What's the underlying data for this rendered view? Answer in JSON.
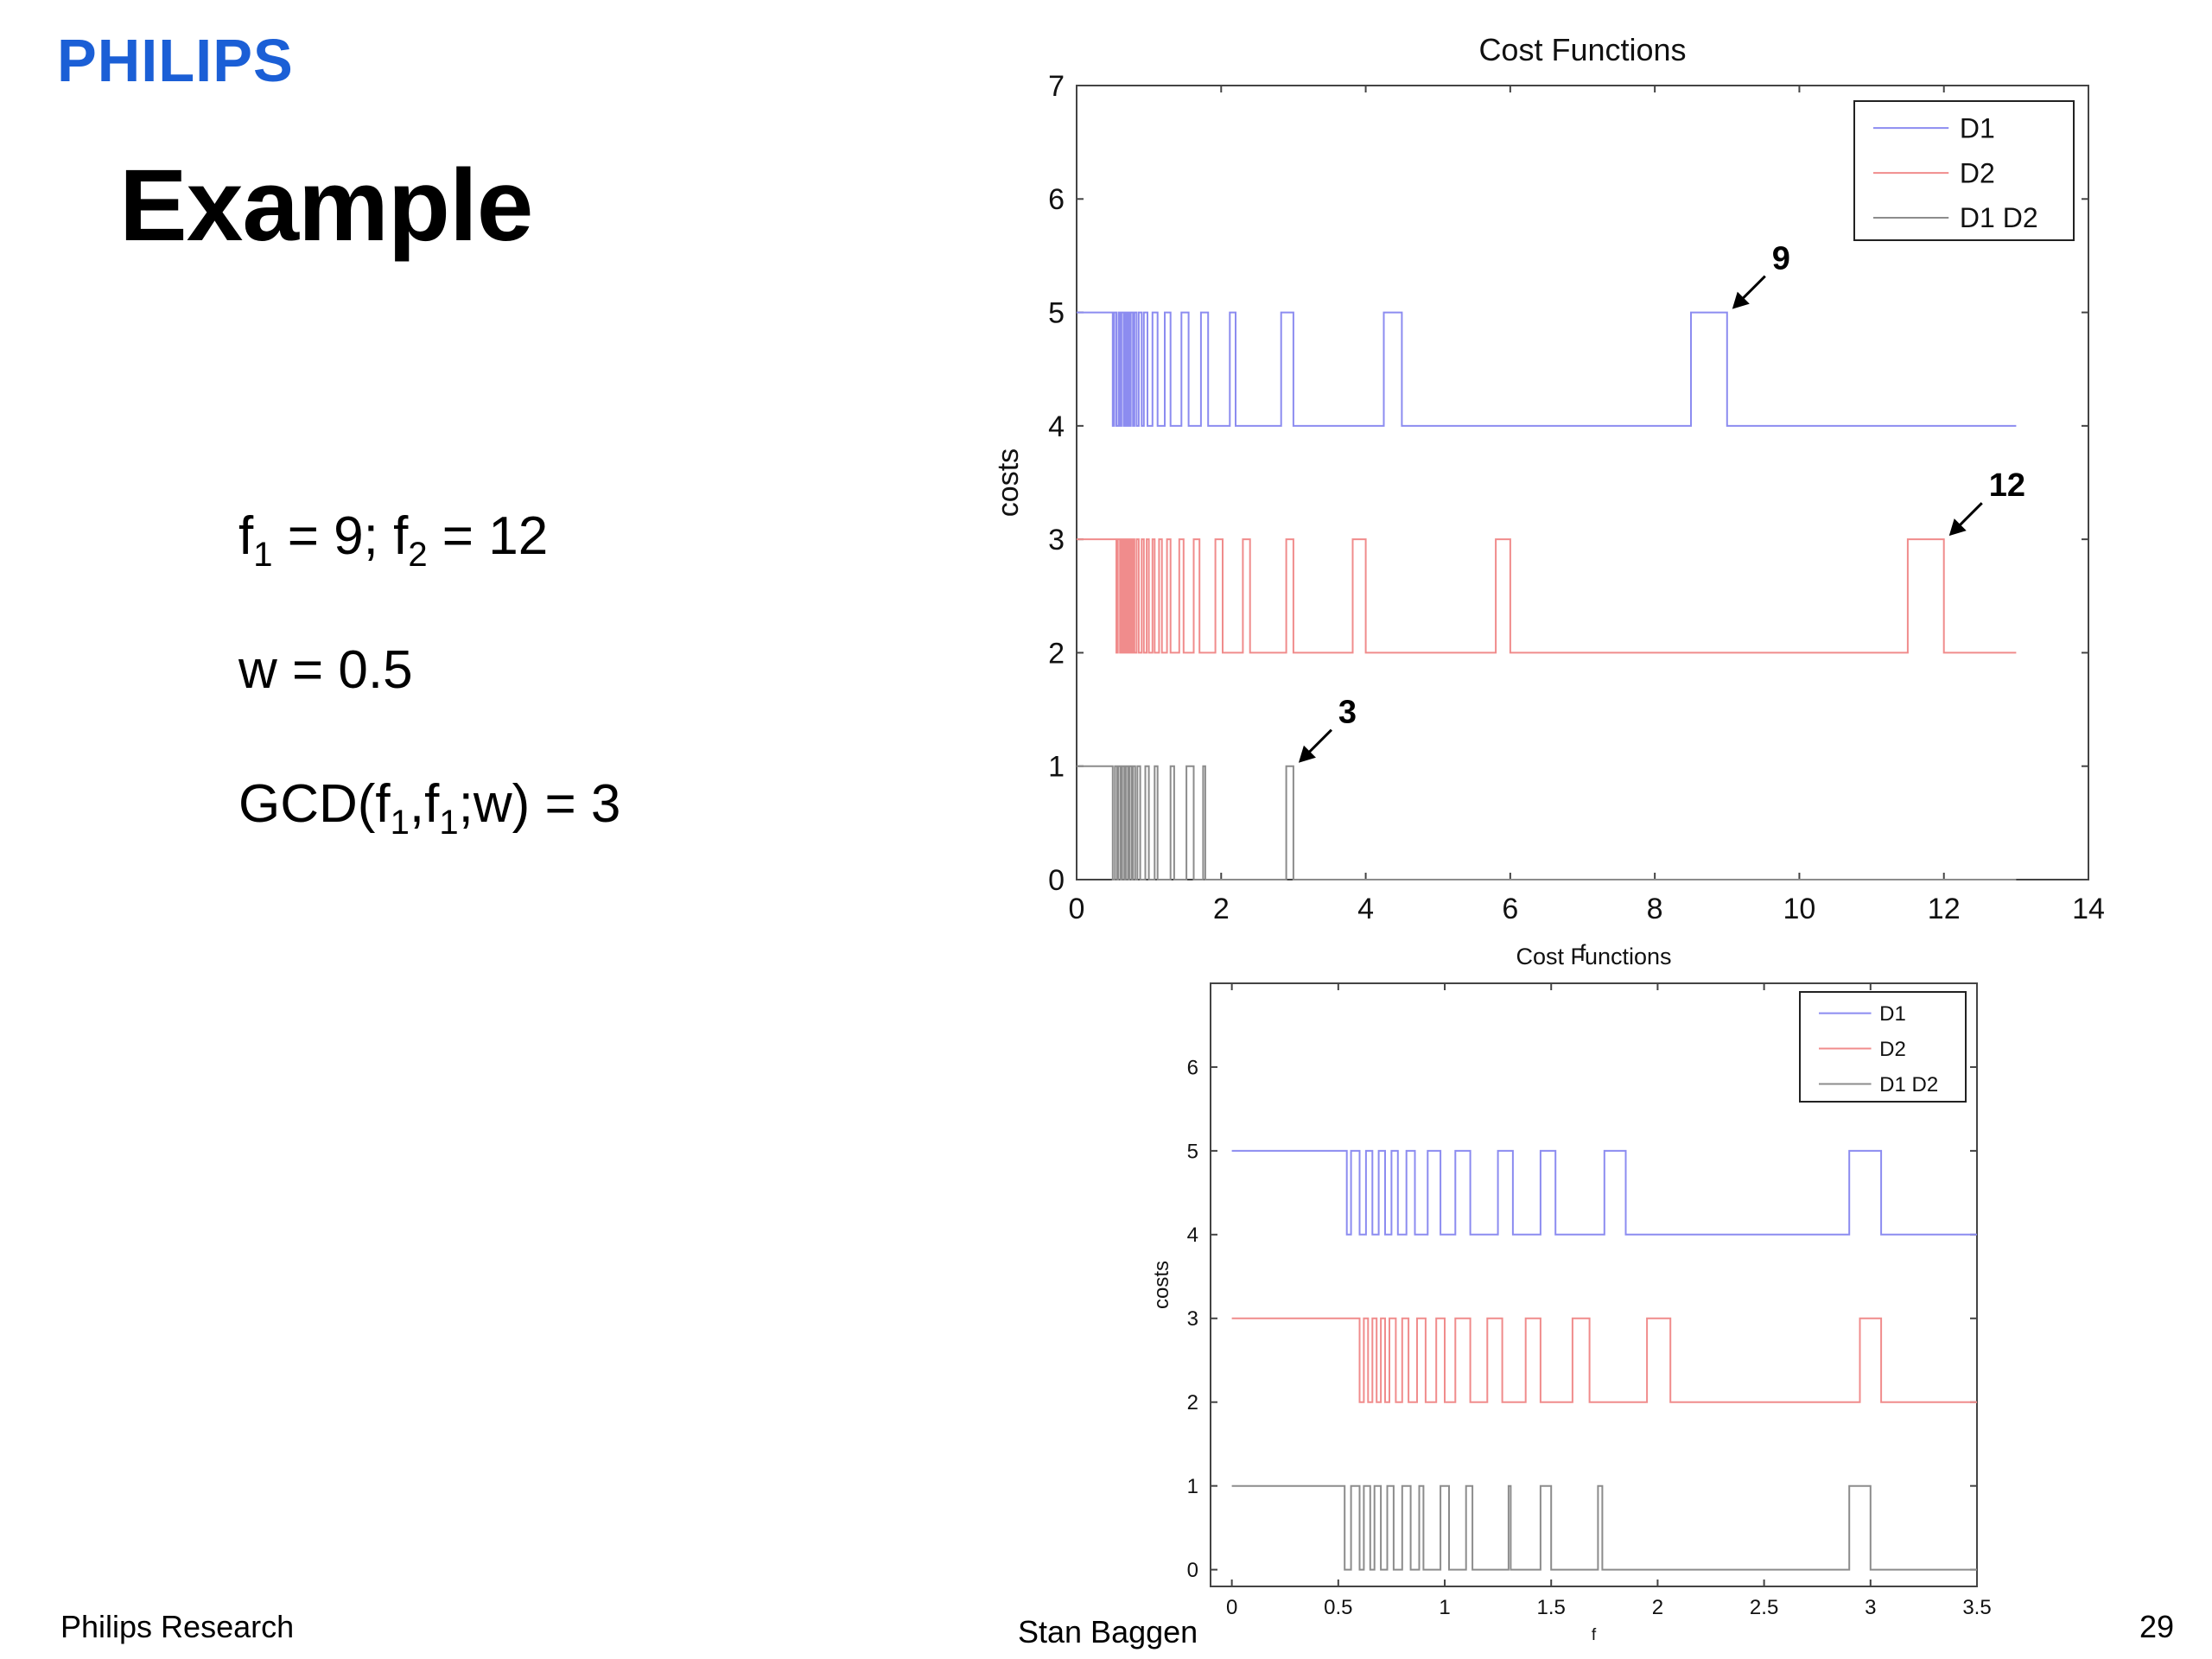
{
  "header": {
    "logo": "PHILIPS",
    "title": "Example"
  },
  "equations": {
    "line1": {
      "f1_label": "f",
      "f1_sub": "1",
      "f1_rest": " = 9; ",
      "f2_label": "f",
      "f2_sub": "2",
      "f2_rest": " = 12"
    },
    "line2": "w = 0.5",
    "line3": {
      "pre": "GCD(f",
      "sub_a": "1",
      "mid": ",f",
      "sub_b": "1",
      "post": ";w) = 3"
    }
  },
  "footer": {
    "left": "Philips Research",
    "center": "Stan Baggen",
    "page": "29"
  },
  "colors": {
    "logo": "#1b5fd6",
    "d1": "#8c8cf0",
    "d2": "#f08c8c",
    "d1d2": "#8c8c8c"
  },
  "chart_data": [
    {
      "type": "line",
      "title": "Cost Functions",
      "xlabel": "f",
      "ylabel": "costs",
      "xlim": [
        0,
        14
      ],
      "ylim": [
        0,
        7
      ],
      "xticks": [
        0,
        2,
        4,
        6,
        8,
        10,
        12,
        14
      ],
      "yticks": [
        0,
        1,
        2,
        3,
        4,
        5,
        6,
        7
      ],
      "legend": {
        "placement": "top-right",
        "entries": [
          "D1",
          "D2",
          "D1 D2"
        ]
      },
      "series": [
        {
          "name": "D1",
          "low": 4,
          "high": 5,
          "x_end": 13,
          "high_intervals": [
            [
              0,
              0.5
            ],
            [
              0.52,
              0.55
            ],
            [
              0.58,
              0.6
            ],
            [
              0.62,
              0.65
            ],
            [
              0.67,
              0.69
            ],
            [
              0.71,
              0.73
            ],
            [
              0.75,
              0.78
            ],
            [
              0.8,
              0.83
            ],
            [
              0.86,
              0.9
            ],
            [
              0.93,
              0.98
            ],
            [
              1.05,
              1.12
            ],
            [
              1.22,
              1.3
            ],
            [
              1.45,
              1.55
            ],
            [
              1.72,
              1.82
            ],
            [
              2.12,
              2.2
            ],
            [
              2.83,
              3.0
            ],
            [
              4.25,
              4.5
            ],
            [
              8.5,
              9.0
            ]
          ]
        },
        {
          "name": "D2",
          "low": 2,
          "high": 3,
          "x_end": 13,
          "high_intervals": [
            [
              0,
              0.55
            ],
            [
              0.57,
              0.6
            ],
            [
              0.62,
              0.64
            ],
            [
              0.66,
              0.68
            ],
            [
              0.7,
              0.72
            ],
            [
              0.74,
              0.76
            ],
            [
              0.78,
              0.8
            ],
            [
              0.83,
              0.86
            ],
            [
              0.9,
              0.93
            ],
            [
              0.97,
              1.0
            ],
            [
              1.05,
              1.08
            ],
            [
              1.14,
              1.18
            ],
            [
              1.25,
              1.3
            ],
            [
              1.42,
              1.48
            ],
            [
              1.62,
              1.7
            ],
            [
              1.92,
              2.02
            ],
            [
              2.3,
              2.4
            ],
            [
              2.9,
              3.0
            ],
            [
              3.82,
              4.0
            ],
            [
              5.8,
              6.0
            ],
            [
              11.5,
              12.0
            ]
          ]
        },
        {
          "name": "D1 D2",
          "low": 0,
          "high": 1,
          "x_end": 13,
          "high_intervals": [
            [
              0,
              0.5
            ],
            [
              0.53,
              0.56
            ],
            [
              0.58,
              0.61
            ],
            [
              0.63,
              0.66
            ],
            [
              0.68,
              0.71
            ],
            [
              0.73,
              0.76
            ],
            [
              0.78,
              0.81
            ],
            [
              0.84,
              0.88
            ],
            [
              0.95,
              1.0
            ],
            [
              1.08,
              1.12
            ],
            [
              1.3,
              1.35
            ],
            [
              1.52,
              1.62
            ],
            [
              1.75,
              1.78
            ],
            [
              2.9,
              3.0
            ]
          ]
        }
      ],
      "annotations": [
        {
          "text": "9",
          "x": 9.0,
          "y": 5
        },
        {
          "text": "12",
          "x": 12.0,
          "y": 3
        },
        {
          "text": "3",
          "x": 3.0,
          "y": 1
        }
      ]
    },
    {
      "type": "line",
      "title": "Cost Functions",
      "xlabel": "f",
      "ylabel": "costs",
      "xlim": [
        -0.1,
        3.5
      ],
      "ylim": [
        -0.2,
        7
      ],
      "xticks": [
        0,
        0.5,
        1,
        1.5,
        2,
        2.5,
        3,
        3.5
      ],
      "xtick_labels": [
        "0",
        "0.5",
        "1",
        "1.5",
        "2",
        "2.5",
        "3",
        "3.5"
      ],
      "yticks": [
        0,
        1,
        2,
        3,
        4,
        5,
        6
      ],
      "legend": {
        "placement": "top-right",
        "entries": [
          "D1",
          "D2",
          "D1 D2"
        ]
      },
      "series": [
        {
          "name": "D1",
          "low": 4,
          "high": 5,
          "x_start": 0,
          "x_end": 3.5,
          "high_intervals": [
            [
              0,
              0.54
            ],
            [
              0.56,
              0.6
            ],
            [
              0.63,
              0.66
            ],
            [
              0.69,
              0.72
            ],
            [
              0.75,
              0.78
            ],
            [
              0.82,
              0.86
            ],
            [
              0.92,
              0.98
            ],
            [
              1.05,
              1.12
            ],
            [
              1.25,
              1.32
            ],
            [
              1.45,
              1.52
            ],
            [
              1.75,
              1.85
            ],
            [
              2.9,
              3.05
            ]
          ]
        },
        {
          "name": "D2",
          "low": 2,
          "high": 3,
          "x_start": 0,
          "x_end": 3.5,
          "high_intervals": [
            [
              0,
              0.6
            ],
            [
              0.62,
              0.64
            ],
            [
              0.66,
              0.68
            ],
            [
              0.7,
              0.72
            ],
            [
              0.74,
              0.77
            ],
            [
              0.8,
              0.83
            ],
            [
              0.87,
              0.91
            ],
            [
              0.96,
              1.0
            ],
            [
              1.05,
              1.12
            ],
            [
              1.2,
              1.27
            ],
            [
              1.38,
              1.45
            ],
            [
              1.6,
              1.68
            ],
            [
              1.95,
              2.06
            ],
            [
              2.95,
              3.05
            ]
          ]
        },
        {
          "name": "D1 D2",
          "low": 0,
          "high": 1,
          "x_start": 0,
          "x_end": 3.5,
          "high_intervals": [
            [
              0,
              0.53
            ],
            [
              0.56,
              0.6
            ],
            [
              0.62,
              0.65
            ],
            [
              0.67,
              0.7
            ],
            [
              0.73,
              0.76
            ],
            [
              0.8,
              0.84
            ],
            [
              0.88,
              0.9
            ],
            [
              0.98,
              1.02
            ],
            [
              1.1,
              1.13
            ],
            [
              1.3,
              1.31
            ],
            [
              1.45,
              1.5
            ],
            [
              1.72,
              1.74
            ],
            [
              2.9,
              3.0
            ]
          ]
        }
      ]
    }
  ]
}
